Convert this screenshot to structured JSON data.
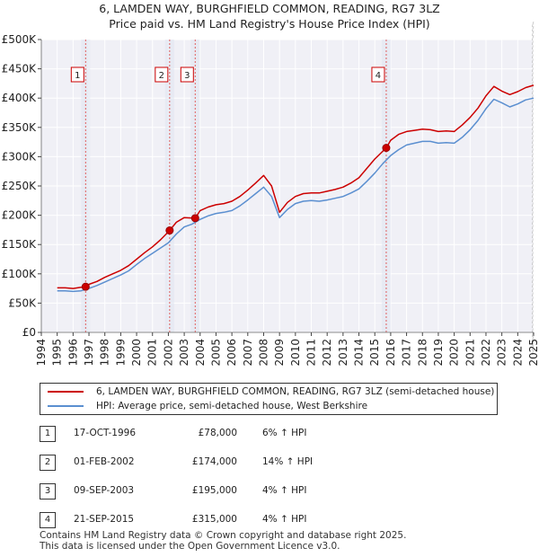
{
  "chart_data": {
    "type": "line",
    "title": "6, LAMDEN WAY, BURGHFIELD COMMON, READING, RG7 3LZ",
    "subtitle": "Price paid vs. HM Land Registry's House Price Index (HPI)",
    "xlabel": "",
    "ylabel": "",
    "xlim": [
      1994,
      2025
    ],
    "ylim": [
      0,
      500000
    ],
    "x_ticks": [
      "1994",
      "1995",
      "1996",
      "1997",
      "1998",
      "1999",
      "2000",
      "2001",
      "2002",
      "2003",
      "2004",
      "2005",
      "2006",
      "2007",
      "2008",
      "2009",
      "2010",
      "2011",
      "2012",
      "2013",
      "2014",
      "2015",
      "2016",
      "2017",
      "2018",
      "2019",
      "2020",
      "2021",
      "2022",
      "2023",
      "2024",
      "2025"
    ],
    "y_ticks": [
      {
        "value": 0,
        "label": "£0"
      },
      {
        "value": 50000,
        "label": "£50K"
      },
      {
        "value": 100000,
        "label": "£100K"
      },
      {
        "value": 150000,
        "label": "£150K"
      },
      {
        "value": 200000,
        "label": "£200K"
      },
      {
        "value": 250000,
        "label": "£250K"
      },
      {
        "value": 300000,
        "label": "£300K"
      },
      {
        "value": 350000,
        "label": "£350K"
      },
      {
        "value": 400000,
        "label": "£400K"
      },
      {
        "value": 450000,
        "label": "£450K"
      },
      {
        "value": 500000,
        "label": "£500K"
      }
    ],
    "grid": true,
    "series": [
      {
        "name": "6, LAMDEN WAY, BURGHFIELD COMMON, READING, RG7 3LZ (semi-detached house)",
        "color": "#cc0000",
        "x": [
          1995.0,
          1995.5,
          1996.0,
          1996.5,
          1996.79,
          1997.0,
          1997.5,
          1998.0,
          1998.5,
          1999.0,
          1999.5,
          2000.0,
          2000.5,
          2001.0,
          2001.5,
          2002.08,
          2002.5,
          2003.0,
          2003.69,
          2004.0,
          2004.5,
          2005.0,
          2005.5,
          2006.0,
          2006.5,
          2007.0,
          2007.5,
          2008.0,
          2008.5,
          2009.0,
          2009.5,
          2010.0,
          2010.5,
          2011.0,
          2011.5,
          2012.0,
          2012.5,
          2013.0,
          2013.5,
          2014.0,
          2014.5,
          2015.0,
          2015.72,
          2016.0,
          2016.5,
          2017.0,
          2017.5,
          2018.0,
          2018.5,
          2019.0,
          2019.5,
          2020.0,
          2020.5,
          2021.0,
          2021.5,
          2022.0,
          2022.5,
          2023.0,
          2023.5,
          2024.0,
          2024.5,
          2025.0
        ],
        "values": [
          76000,
          76000,
          75000,
          77000,
          78000,
          82000,
          87000,
          94000,
          100000,
          106000,
          114000,
          125000,
          136000,
          146000,
          158000,
          174000,
          188000,
          196000,
          195000,
          208000,
          214000,
          218000,
          220000,
          224000,
          232000,
          243000,
          255000,
          268000,
          250000,
          205000,
          222000,
          232000,
          237000,
          238000,
          238000,
          241000,
          244000,
          248000,
          255000,
          264000,
          280000,
          296000,
          315000,
          328000,
          338000,
          343000,
          345000,
          347000,
          346000,
          343000,
          344000,
          343000,
          354000,
          367000,
          383000,
          404000,
          420000,
          412000,
          406000,
          411000,
          418000,
          422000
        ]
      },
      {
        "name": "HPI: Average price, semi-detached house, West Berkshire",
        "color": "#5b8fd0",
        "x": [
          1995.0,
          1995.5,
          1996.0,
          1996.5,
          1997.0,
          1997.5,
          1998.0,
          1998.5,
          1999.0,
          1999.5,
          2000.0,
          2000.5,
          2001.0,
          2001.5,
          2002.0,
          2002.5,
          2003.0,
          2003.5,
          2004.0,
          2004.5,
          2005.0,
          2005.5,
          2006.0,
          2006.5,
          2007.0,
          2007.5,
          2008.0,
          2008.5,
          2009.0,
          2009.5,
          2010.0,
          2010.5,
          2011.0,
          2011.5,
          2012.0,
          2012.5,
          2013.0,
          2013.5,
          2014.0,
          2014.5,
          2015.0,
          2015.5,
          2016.0,
          2016.5,
          2017.0,
          2017.5,
          2018.0,
          2018.5,
          2019.0,
          2019.5,
          2020.0,
          2020.5,
          2021.0,
          2021.5,
          2022.0,
          2022.5,
          2023.0,
          2023.5,
          2024.0,
          2024.5,
          2025.0
        ],
        "values": [
          71000,
          71000,
          70000,
          71000,
          75000,
          80000,
          86000,
          92000,
          98000,
          105000,
          116000,
          126000,
          135000,
          144000,
          153000,
          168000,
          180000,
          185000,
          193000,
          199000,
          203000,
          205000,
          208000,
          216000,
          226000,
          237000,
          248000,
          232000,
          196000,
          210000,
          220000,
          224000,
          225000,
          224000,
          226000,
          229000,
          232000,
          238000,
          245000,
          258000,
          272000,
          288000,
          302000,
          312000,
          320000,
          323000,
          326000,
          326000,
          323000,
          324000,
          323000,
          333000,
          346000,
          362000,
          382000,
          398000,
          392000,
          385000,
          390000,
          397000,
          400000
        ]
      }
    ],
    "markers": [
      {
        "label": "1",
        "x": 1996.79,
        "value": 78000
      },
      {
        "label": "2",
        "x": 2002.08,
        "value": 174000
      },
      {
        "label": "3",
        "x": 2003.69,
        "value": 195000
      },
      {
        "label": "4",
        "x": 2015.72,
        "value": 315000
      }
    ]
  },
  "legend": {
    "items": [
      {
        "label": "6, LAMDEN WAY, BURGHFIELD COMMON, READING, RG7 3LZ (semi-detached house)",
        "color": "#cc0000"
      },
      {
        "label": "HPI: Average price, semi-detached house, West Berkshire",
        "color": "#5b8fd0"
      }
    ]
  },
  "transactions": [
    {
      "num": "1",
      "date": "17-OCT-1996",
      "price": "£78,000",
      "hpi": "6% ↑ HPI"
    },
    {
      "num": "2",
      "date": "01-FEB-2002",
      "price": "£174,000",
      "hpi": "14% ↑ HPI"
    },
    {
      "num": "3",
      "date": "09-SEP-2003",
      "price": "£195,000",
      "hpi": "4% ↑ HPI"
    },
    {
      "num": "4",
      "date": "21-SEP-2015",
      "price": "£315,000",
      "hpi": "4% ↑ HPI"
    }
  ],
  "footer": {
    "line1": "Contains HM Land Registry data © Crown copyright and database right 2025.",
    "line2": "This data is licensed under the Open Government Licence v3.0."
  }
}
